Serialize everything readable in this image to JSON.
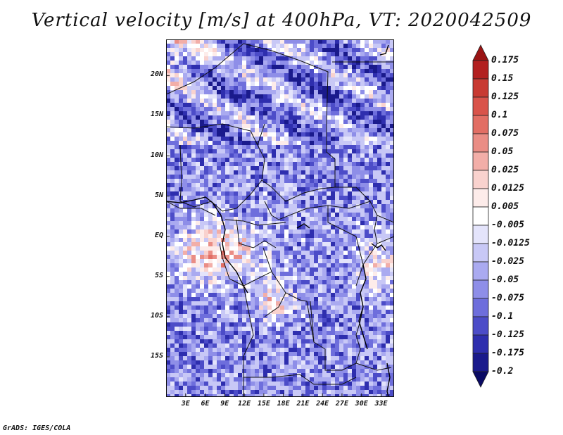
{
  "title": "Vertical velocity [m/s] at 400hPa, VT: 2020042509",
  "footer": "GrADS: IGES/COLA",
  "lat_labels": [
    "20N",
    "15N",
    "10N",
    "5N",
    "EQ",
    "5S",
    "10S",
    "15S"
  ],
  "lat_values": [
    20,
    15,
    10,
    5,
    0,
    -5,
    -10,
    -15
  ],
  "lon_labels": [
    "3E",
    "6E",
    "9E",
    "12E",
    "15E",
    "18E",
    "21E",
    "24E",
    "27E",
    "30E",
    "33E"
  ],
  "lon_values": [
    3,
    6,
    9,
    12,
    15,
    18,
    21,
    24,
    27,
    30,
    33
  ],
  "map_extent": {
    "lon_min": 0,
    "lon_max": 35,
    "lat_min": -20,
    "lat_max": 24.5
  },
  "colorbar": {
    "labels": [
      "0.175",
      "0.15",
      "0.125",
      "0.1",
      "0.075",
      "0.05",
      "0.025",
      "0.0125",
      "0.005",
      "-0.005",
      "-0.0125",
      "-0.025",
      "-0.05",
      "-0.075",
      "-0.1",
      "-0.125",
      "-0.175",
      "-0.2"
    ],
    "colors": [
      "#9a1414",
      "#b22020",
      "#c83a32",
      "#d9534a",
      "#e26e64",
      "#ea8d85",
      "#f2aea8",
      "#f9d2ce",
      "#fdecea",
      "#ffffff",
      "#e4e4fb",
      "#c8c8f6",
      "#aaaaf0",
      "#8e8ee8",
      "#6e6edc",
      "#4c4cc8",
      "#2e2eae",
      "#1a1a8c",
      "#0a0a64"
    ]
  }
}
